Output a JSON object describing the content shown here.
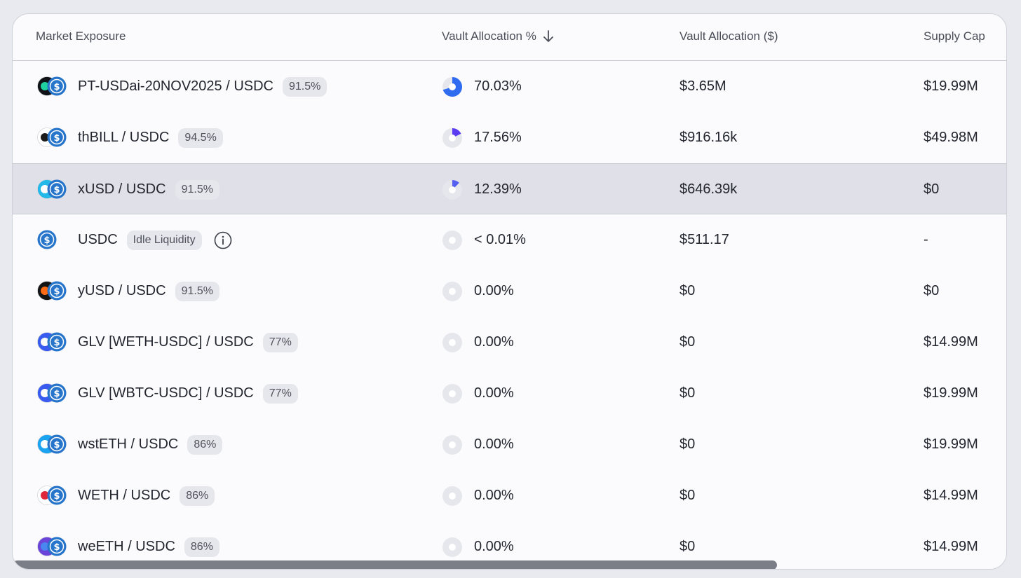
{
  "table": {
    "headers": {
      "market": "Market Exposure",
      "allocation_pct": "Vault Allocation %",
      "allocation_usd": "Vault Allocation ($)",
      "supply_cap": "Supply Cap"
    },
    "rows": [
      {
        "market": "PT-USDai-20NOV2025 / USDC",
        "badge": "91.5%",
        "pct": "70.03%",
        "pct_value": 70.03,
        "usd": "$3.65M",
        "cap": "$19.99M",
        "icon_a": "pt-usdai-token-icon",
        "color_a": "#0f1318",
        "color_a2": "#1fd1a0"
      },
      {
        "market": "thBILL / USDC",
        "badge": "94.5%",
        "pct": "17.56%",
        "pct_value": 17.56,
        "usd": "$916.16k",
        "cap": "$49.98M",
        "icon_a": "thbill-token-icon",
        "color_a": "#ffffff",
        "color_a2": "#1c1c1c"
      },
      {
        "market": "xUSD / USDC",
        "badge": "91.5%",
        "pct": "12.39%",
        "pct_value": 12.39,
        "usd": "$646.39k",
        "cap": "$0",
        "icon_a": "xusd-token-icon",
        "color_a": "#22b8e8",
        "color_a2": "#ffffff",
        "highlight": true
      },
      {
        "market": "USDC",
        "badge": "Idle Liquidity",
        "pct": "< 0.01%",
        "pct_value": 0,
        "usd": "$511.17",
        "cap": "-",
        "icon_a": "",
        "info": true
      },
      {
        "market": "yUSD / USDC",
        "badge": "91.5%",
        "pct": "0.00%",
        "pct_value": 0,
        "usd": "$0",
        "cap": "$0",
        "icon_a": "yusd-token-icon",
        "color_a": "#141414",
        "color_a2": "#ff6a13"
      },
      {
        "market": "GLV [WETH-USDC] / USDC",
        "badge": "77%",
        "pct": "0.00%",
        "pct_value": 0,
        "usd": "$0",
        "cap": "$14.99M",
        "icon_a": "glv-token-icon",
        "color_a": "#3a5bf0",
        "color_a2": "#ffffff"
      },
      {
        "market": "GLV [WBTC-USDC] / USDC",
        "badge": "77%",
        "pct": "0.00%",
        "pct_value": 0,
        "usd": "$0",
        "cap": "$19.99M",
        "icon_a": "glv-token-icon",
        "color_a": "#3a5bf0",
        "color_a2": "#ffffff"
      },
      {
        "market": "wstETH / USDC",
        "badge": "86%",
        "pct": "0.00%",
        "pct_value": 0,
        "usd": "$0",
        "cap": "$19.99M",
        "icon_a": "wsteth-token-icon",
        "color_a": "#1aa3f0",
        "color_a2": "#ffffff"
      },
      {
        "market": "WETH / USDC",
        "badge": "86%",
        "pct": "0.00%",
        "pct_value": 0,
        "usd": "$0",
        "cap": "$14.99M",
        "icon_a": "weth-token-icon",
        "color_a": "#ffffff",
        "color_a2": "#e0283a"
      },
      {
        "market": "weETH / USDC",
        "badge": "86%",
        "pct": "0.00%",
        "pct_value": 0,
        "usd": "$0",
        "cap": "$14.99M",
        "icon_a": "weeth-token-icon",
        "color_a": "#6b45d8",
        "color_a2": "#4a86f0"
      }
    ]
  },
  "colors": {
    "usdc": "#2775ca",
    "pie_track": "#e6e7ec",
    "pie_fill_1": "#2f6cf0",
    "pie_fill_2": "#5b3cf0",
    "pie_fill_3": "#5560f0"
  }
}
